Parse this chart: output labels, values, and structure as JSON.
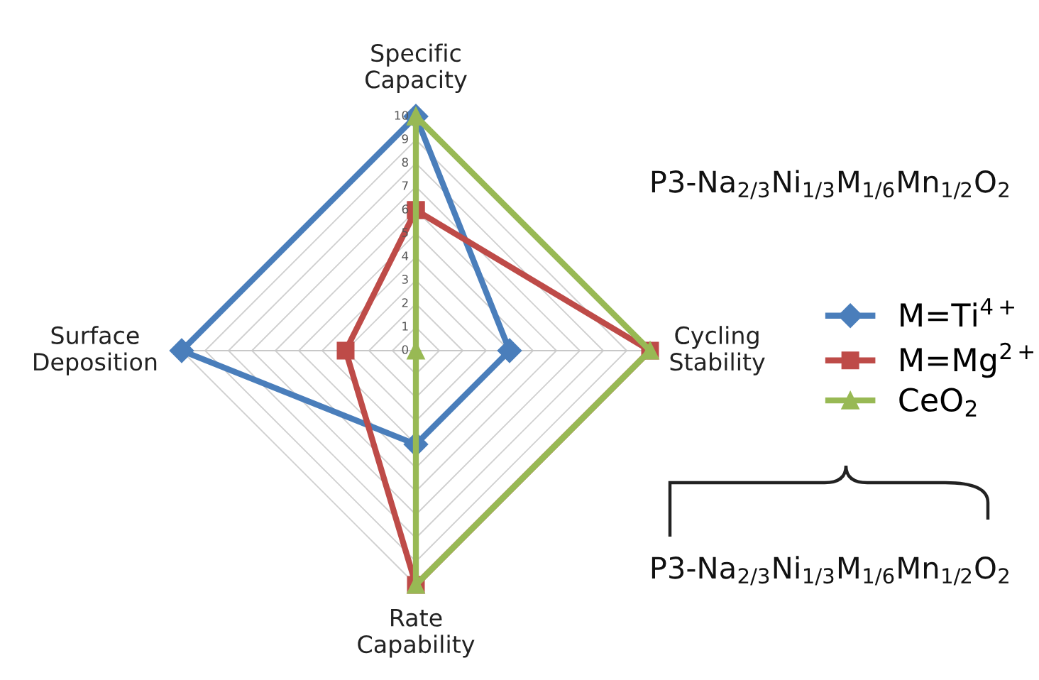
{
  "chart_data": {
    "type": "radar",
    "categories": [
      "Specific\nCapacity",
      "Cycling\nStability",
      "Rate\nCapability",
      "Surface\nDeposition"
    ],
    "ylim": [
      0,
      10
    ],
    "yticks": [
      0,
      1,
      2,
      3,
      4,
      5,
      6,
      7,
      8,
      9,
      10
    ],
    "grid": true,
    "legend": "right",
    "series": [
      {
        "name": "M=Ti$^{4+}$",
        "color": "#4a7ebb",
        "marker": "diamond",
        "values": [
          10,
          4,
          4,
          10
        ]
      },
      {
        "name": "M=Mg$^{2+}$",
        "color": "#be4b48",
        "marker": "square",
        "values": [
          6,
          10,
          10,
          3
        ]
      },
      {
        "name": "CeO$_{2}$",
        "color": "#98b954",
        "marker": "triangle",
        "values": [
          10,
          10,
          10,
          0
        ]
      }
    ],
    "annotations": [
      "P3-Na$_{2/3}$Ni$_{1/3}$M$_{1/6}$Mn$_{1/2}$O$_{2}$",
      "P3-Na$_{2/3}$Ni$_{1/3}$M$_{1/6}$Mn$_{1/2}$O$_{2}$"
    ]
  }
}
